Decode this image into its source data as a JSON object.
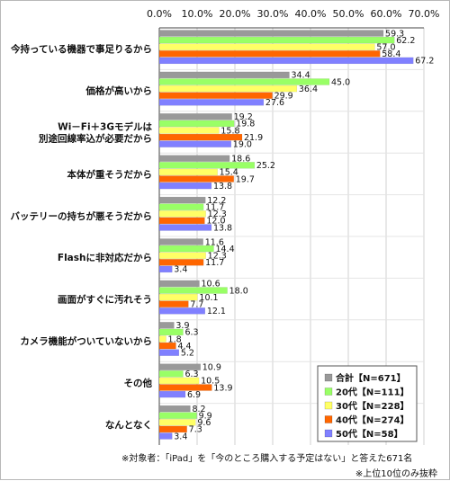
{
  "chart_data": {
    "type": "bar",
    "orientation": "horizontal",
    "x_ticks": [
      "0.0%",
      "10.0%",
      "20.0%",
      "30.0%",
      "40.0%",
      "50.0%",
      "60.0%",
      "70.0%"
    ],
    "xlim": [
      0,
      70
    ],
    "grid": true,
    "legend_position": "bottom-right",
    "categories": [
      "今持っている機器で事足りるから",
      "価格が高いから",
      "Wi－Fi＋3Gモデルは\n別途回線率込が必要だから",
      "本体が重そうだから",
      "バッテリーの持ちが悪そうだから",
      "Flashに非対応だから",
      "画面がすぐに汚れそう",
      "カメラ機能がついていないから",
      "その他",
      "なんとなく"
    ],
    "series": [
      {
        "name": "合計【N=671】",
        "color": "#999999",
        "values": [
          59.3,
          34.4,
          19.2,
          18.6,
          12.2,
          11.6,
          10.6,
          3.9,
          10.9,
          8.2
        ]
      },
      {
        "name": "20代【N=111】",
        "color": "#99ff66",
        "values": [
          62.2,
          45.0,
          19.8,
          25.2,
          11.7,
          14.4,
          18.0,
          6.3,
          6.3,
          9.9
        ]
      },
      {
        "name": "30代【N=228】",
        "color": "#ffff66",
        "values": [
          57.0,
          36.4,
          15.8,
          15.4,
          12.3,
          12.3,
          10.1,
          1.8,
          10.5,
          9.6
        ]
      },
      {
        "name": "40代【N=274】",
        "color": "#ff6600",
        "values": [
          58.4,
          29.9,
          21.9,
          19.7,
          12.0,
          11.7,
          7.7,
          4.4,
          13.9,
          7.3
        ]
      },
      {
        "name": "50代【N=58】",
        "color": "#8080ff",
        "values": [
          67.2,
          27.6,
          19.0,
          13.8,
          13.8,
          3.4,
          12.1,
          5.2,
          6.9,
          3.4
        ]
      }
    ]
  },
  "notes": {
    "line1": "※対象者：「iPad」を「今のところ購入する予定はない」と答えた671名",
    "line2": "※上位10位のみ抜粋"
  }
}
